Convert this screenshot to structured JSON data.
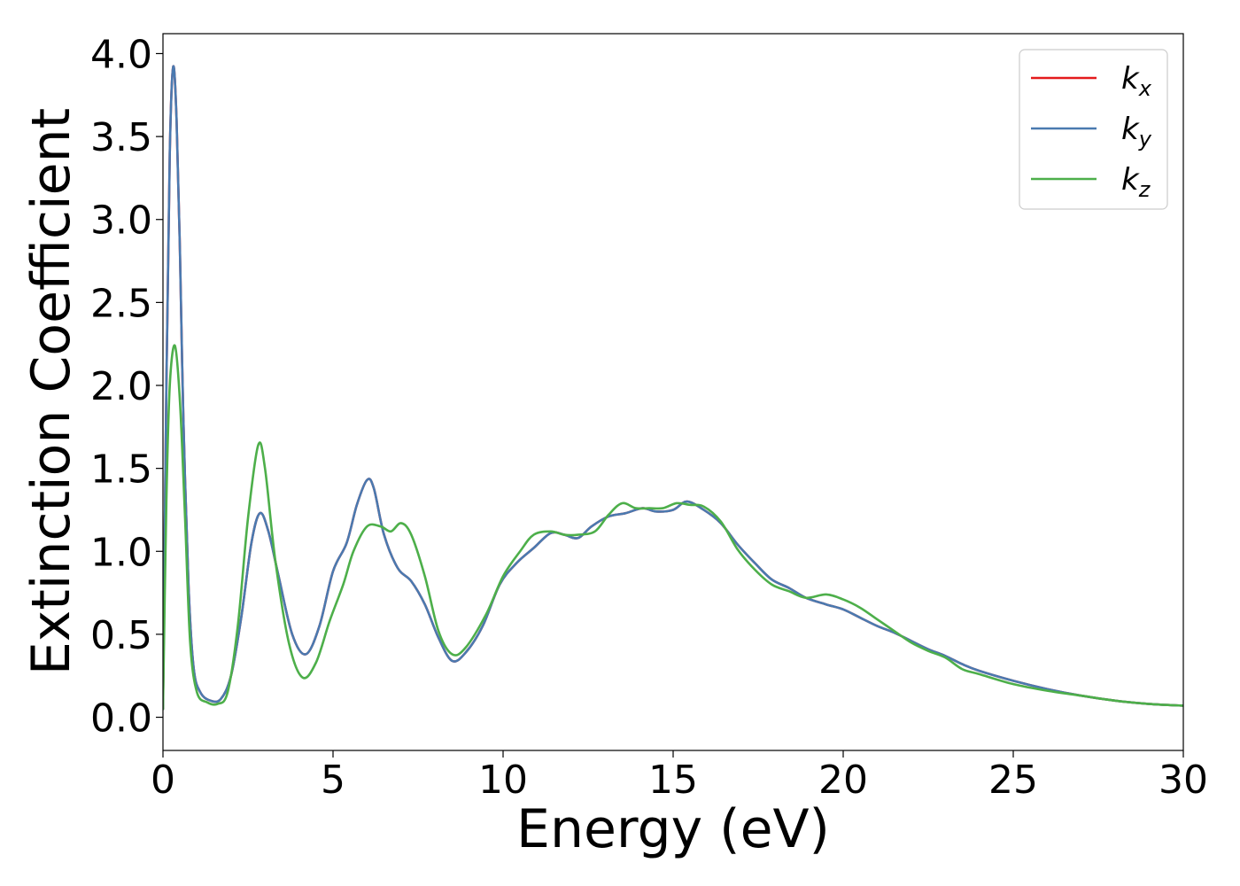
{
  "chart_data": {
    "type": "line",
    "xlabel": "Energy (eV)",
    "ylabel": "Extinction Coefficient",
    "xlim": [
      0,
      30
    ],
    "ylim": [
      -0.2,
      4.12
    ],
    "xticks": [
      0,
      5,
      10,
      15,
      20,
      25,
      30
    ],
    "xtick_labels": [
      "0",
      "5",
      "10",
      "15",
      "20",
      "25",
      "30"
    ],
    "yticks": [
      0.0,
      0.5,
      1.0,
      1.5,
      2.0,
      2.5,
      3.0,
      3.5,
      4.0
    ],
    "ytick_labels": [
      "0.0",
      "0.5",
      "1.0",
      "1.5",
      "2.0",
      "2.5",
      "3.0",
      "3.5",
      "4.0"
    ],
    "grid": false,
    "legend_position": "top-right",
    "series": [
      {
        "name": "k",
        "subscript": "x",
        "color": "#e41a1c",
        "points": [
          [
            0,
            0.05
          ],
          [
            0.1,
            2.0
          ],
          [
            0.2,
            3.4
          ],
          [
            0.3,
            3.92
          ],
          [
            0.4,
            3.6
          ],
          [
            0.5,
            2.8
          ],
          [
            0.6,
            1.8
          ],
          [
            0.75,
            0.8
          ],
          [
            0.9,
            0.3
          ],
          [
            1.1,
            0.15
          ],
          [
            1.4,
            0.1
          ],
          [
            1.7,
            0.11
          ],
          [
            2.0,
            0.25
          ],
          [
            2.3,
            0.6
          ],
          [
            2.6,
            1.05
          ],
          [
            2.85,
            1.23
          ],
          [
            3.1,
            1.12
          ],
          [
            3.4,
            0.85
          ],
          [
            3.8,
            0.5
          ],
          [
            4.2,
            0.38
          ],
          [
            4.6,
            0.55
          ],
          [
            5.0,
            0.88
          ],
          [
            5.4,
            1.05
          ],
          [
            5.7,
            1.28
          ],
          [
            6.0,
            1.43
          ],
          [
            6.2,
            1.38
          ],
          [
            6.5,
            1.1
          ],
          [
            6.9,
            0.9
          ],
          [
            7.3,
            0.82
          ],
          [
            7.7,
            0.68
          ],
          [
            8.1,
            0.48
          ],
          [
            8.5,
            0.34
          ],
          [
            8.9,
            0.39
          ],
          [
            9.4,
            0.55
          ],
          [
            9.9,
            0.8
          ],
          [
            10.4,
            0.93
          ],
          [
            10.9,
            1.02
          ],
          [
            11.4,
            1.11
          ],
          [
            11.8,
            1.1
          ],
          [
            12.2,
            1.08
          ],
          [
            12.6,
            1.15
          ],
          [
            13.1,
            1.21
          ],
          [
            13.6,
            1.23
          ],
          [
            14.1,
            1.26
          ],
          [
            14.5,
            1.24
          ],
          [
            15.0,
            1.25
          ],
          [
            15.4,
            1.3
          ],
          [
            15.9,
            1.25
          ],
          [
            16.4,
            1.17
          ],
          [
            16.9,
            1.04
          ],
          [
            17.4,
            0.93
          ],
          [
            17.9,
            0.83
          ],
          [
            18.4,
            0.78
          ],
          [
            18.9,
            0.72
          ],
          [
            19.5,
            0.68
          ],
          [
            20.0,
            0.65
          ],
          [
            20.5,
            0.6
          ],
          [
            21.0,
            0.55
          ],
          [
            21.5,
            0.51
          ],
          [
            22.0,
            0.46
          ],
          [
            22.5,
            0.41
          ],
          [
            23.0,
            0.37
          ],
          [
            23.5,
            0.32
          ],
          [
            24.0,
            0.28
          ],
          [
            25.0,
            0.22
          ],
          [
            26.0,
            0.17
          ],
          [
            27.0,
            0.13
          ],
          [
            28.0,
            0.1
          ],
          [
            29.0,
            0.08
          ],
          [
            30.0,
            0.07
          ]
        ]
      },
      {
        "name": "k",
        "subscript": "y",
        "color": "#4a7ab0",
        "points": [
          [
            0,
            0.05
          ],
          [
            0.1,
            2.0
          ],
          [
            0.2,
            3.4
          ],
          [
            0.3,
            3.92
          ],
          [
            0.4,
            3.6
          ],
          [
            0.5,
            2.8
          ],
          [
            0.6,
            1.8
          ],
          [
            0.75,
            0.8
          ],
          [
            0.9,
            0.3
          ],
          [
            1.1,
            0.15
          ],
          [
            1.4,
            0.1
          ],
          [
            1.7,
            0.11
          ],
          [
            2.0,
            0.25
          ],
          [
            2.3,
            0.6
          ],
          [
            2.6,
            1.05
          ],
          [
            2.85,
            1.23
          ],
          [
            3.1,
            1.12
          ],
          [
            3.4,
            0.85
          ],
          [
            3.8,
            0.5
          ],
          [
            4.2,
            0.38
          ],
          [
            4.6,
            0.55
          ],
          [
            5.0,
            0.88
          ],
          [
            5.4,
            1.05
          ],
          [
            5.7,
            1.28
          ],
          [
            6.0,
            1.43
          ],
          [
            6.2,
            1.38
          ],
          [
            6.5,
            1.1
          ],
          [
            6.9,
            0.9
          ],
          [
            7.3,
            0.82
          ],
          [
            7.7,
            0.68
          ],
          [
            8.1,
            0.48
          ],
          [
            8.5,
            0.34
          ],
          [
            8.9,
            0.39
          ],
          [
            9.4,
            0.55
          ],
          [
            9.9,
            0.8
          ],
          [
            10.4,
            0.93
          ],
          [
            10.9,
            1.02
          ],
          [
            11.4,
            1.11
          ],
          [
            11.8,
            1.1
          ],
          [
            12.2,
            1.08
          ],
          [
            12.6,
            1.15
          ],
          [
            13.1,
            1.21
          ],
          [
            13.6,
            1.23
          ],
          [
            14.1,
            1.26
          ],
          [
            14.5,
            1.24
          ],
          [
            15.0,
            1.25
          ],
          [
            15.4,
            1.3
          ],
          [
            15.9,
            1.25
          ],
          [
            16.4,
            1.17
          ],
          [
            16.9,
            1.04
          ],
          [
            17.4,
            0.93
          ],
          [
            17.9,
            0.83
          ],
          [
            18.4,
            0.78
          ],
          [
            18.9,
            0.72
          ],
          [
            19.5,
            0.68
          ],
          [
            20.0,
            0.65
          ],
          [
            20.5,
            0.6
          ],
          [
            21.0,
            0.55
          ],
          [
            21.5,
            0.51
          ],
          [
            22.0,
            0.46
          ],
          [
            22.5,
            0.41
          ],
          [
            23.0,
            0.37
          ],
          [
            23.5,
            0.32
          ],
          [
            24.0,
            0.28
          ],
          [
            25.0,
            0.22
          ],
          [
            26.0,
            0.17
          ],
          [
            27.0,
            0.13
          ],
          [
            28.0,
            0.1
          ],
          [
            29.0,
            0.08
          ],
          [
            30.0,
            0.07
          ]
        ]
      },
      {
        "name": "k",
        "subscript": "z",
        "color": "#4daf4a",
        "points": [
          [
            0,
            0.05
          ],
          [
            0.1,
            1.3
          ],
          [
            0.2,
            2.0
          ],
          [
            0.35,
            2.24
          ],
          [
            0.5,
            1.9
          ],
          [
            0.65,
            1.2
          ],
          [
            0.8,
            0.45
          ],
          [
            1.0,
            0.15
          ],
          [
            1.3,
            0.09
          ],
          [
            1.6,
            0.08
          ],
          [
            1.9,
            0.15
          ],
          [
            2.2,
            0.55
          ],
          [
            2.5,
            1.2
          ],
          [
            2.8,
            1.64
          ],
          [
            3.0,
            1.5
          ],
          [
            3.3,
            0.95
          ],
          [
            3.7,
            0.45
          ],
          [
            4.1,
            0.24
          ],
          [
            4.5,
            0.33
          ],
          [
            4.9,
            0.58
          ],
          [
            5.3,
            0.8
          ],
          [
            5.6,
            1.0
          ],
          [
            6.0,
            1.15
          ],
          [
            6.4,
            1.15
          ],
          [
            6.7,
            1.12
          ],
          [
            7.0,
            1.17
          ],
          [
            7.3,
            1.1
          ],
          [
            7.7,
            0.85
          ],
          [
            8.1,
            0.52
          ],
          [
            8.5,
            0.38
          ],
          [
            8.9,
            0.42
          ],
          [
            9.5,
            0.62
          ],
          [
            10.0,
            0.85
          ],
          [
            10.5,
            1.0
          ],
          [
            10.9,
            1.1
          ],
          [
            11.4,
            1.12
          ],
          [
            11.8,
            1.1
          ],
          [
            12.2,
            1.1
          ],
          [
            12.7,
            1.12
          ],
          [
            13.1,
            1.22
          ],
          [
            13.5,
            1.29
          ],
          [
            13.9,
            1.26
          ],
          [
            14.3,
            1.26
          ],
          [
            14.7,
            1.26
          ],
          [
            15.1,
            1.29
          ],
          [
            15.5,
            1.28
          ],
          [
            15.9,
            1.27
          ],
          [
            16.4,
            1.18
          ],
          [
            16.9,
            1.01
          ],
          [
            17.4,
            0.89
          ],
          [
            17.9,
            0.8
          ],
          [
            18.4,
            0.76
          ],
          [
            18.9,
            0.72
          ],
          [
            19.5,
            0.74
          ],
          [
            20.0,
            0.71
          ],
          [
            20.5,
            0.66
          ],
          [
            21.0,
            0.59
          ],
          [
            21.5,
            0.52
          ],
          [
            22.0,
            0.45
          ],
          [
            22.5,
            0.4
          ],
          [
            23.0,
            0.36
          ],
          [
            23.5,
            0.29
          ],
          [
            24.0,
            0.26
          ],
          [
            25.0,
            0.2
          ],
          [
            26.0,
            0.16
          ],
          [
            27.0,
            0.13
          ],
          [
            28.0,
            0.1
          ],
          [
            29.0,
            0.08
          ],
          [
            30.0,
            0.07
          ]
        ]
      }
    ]
  }
}
